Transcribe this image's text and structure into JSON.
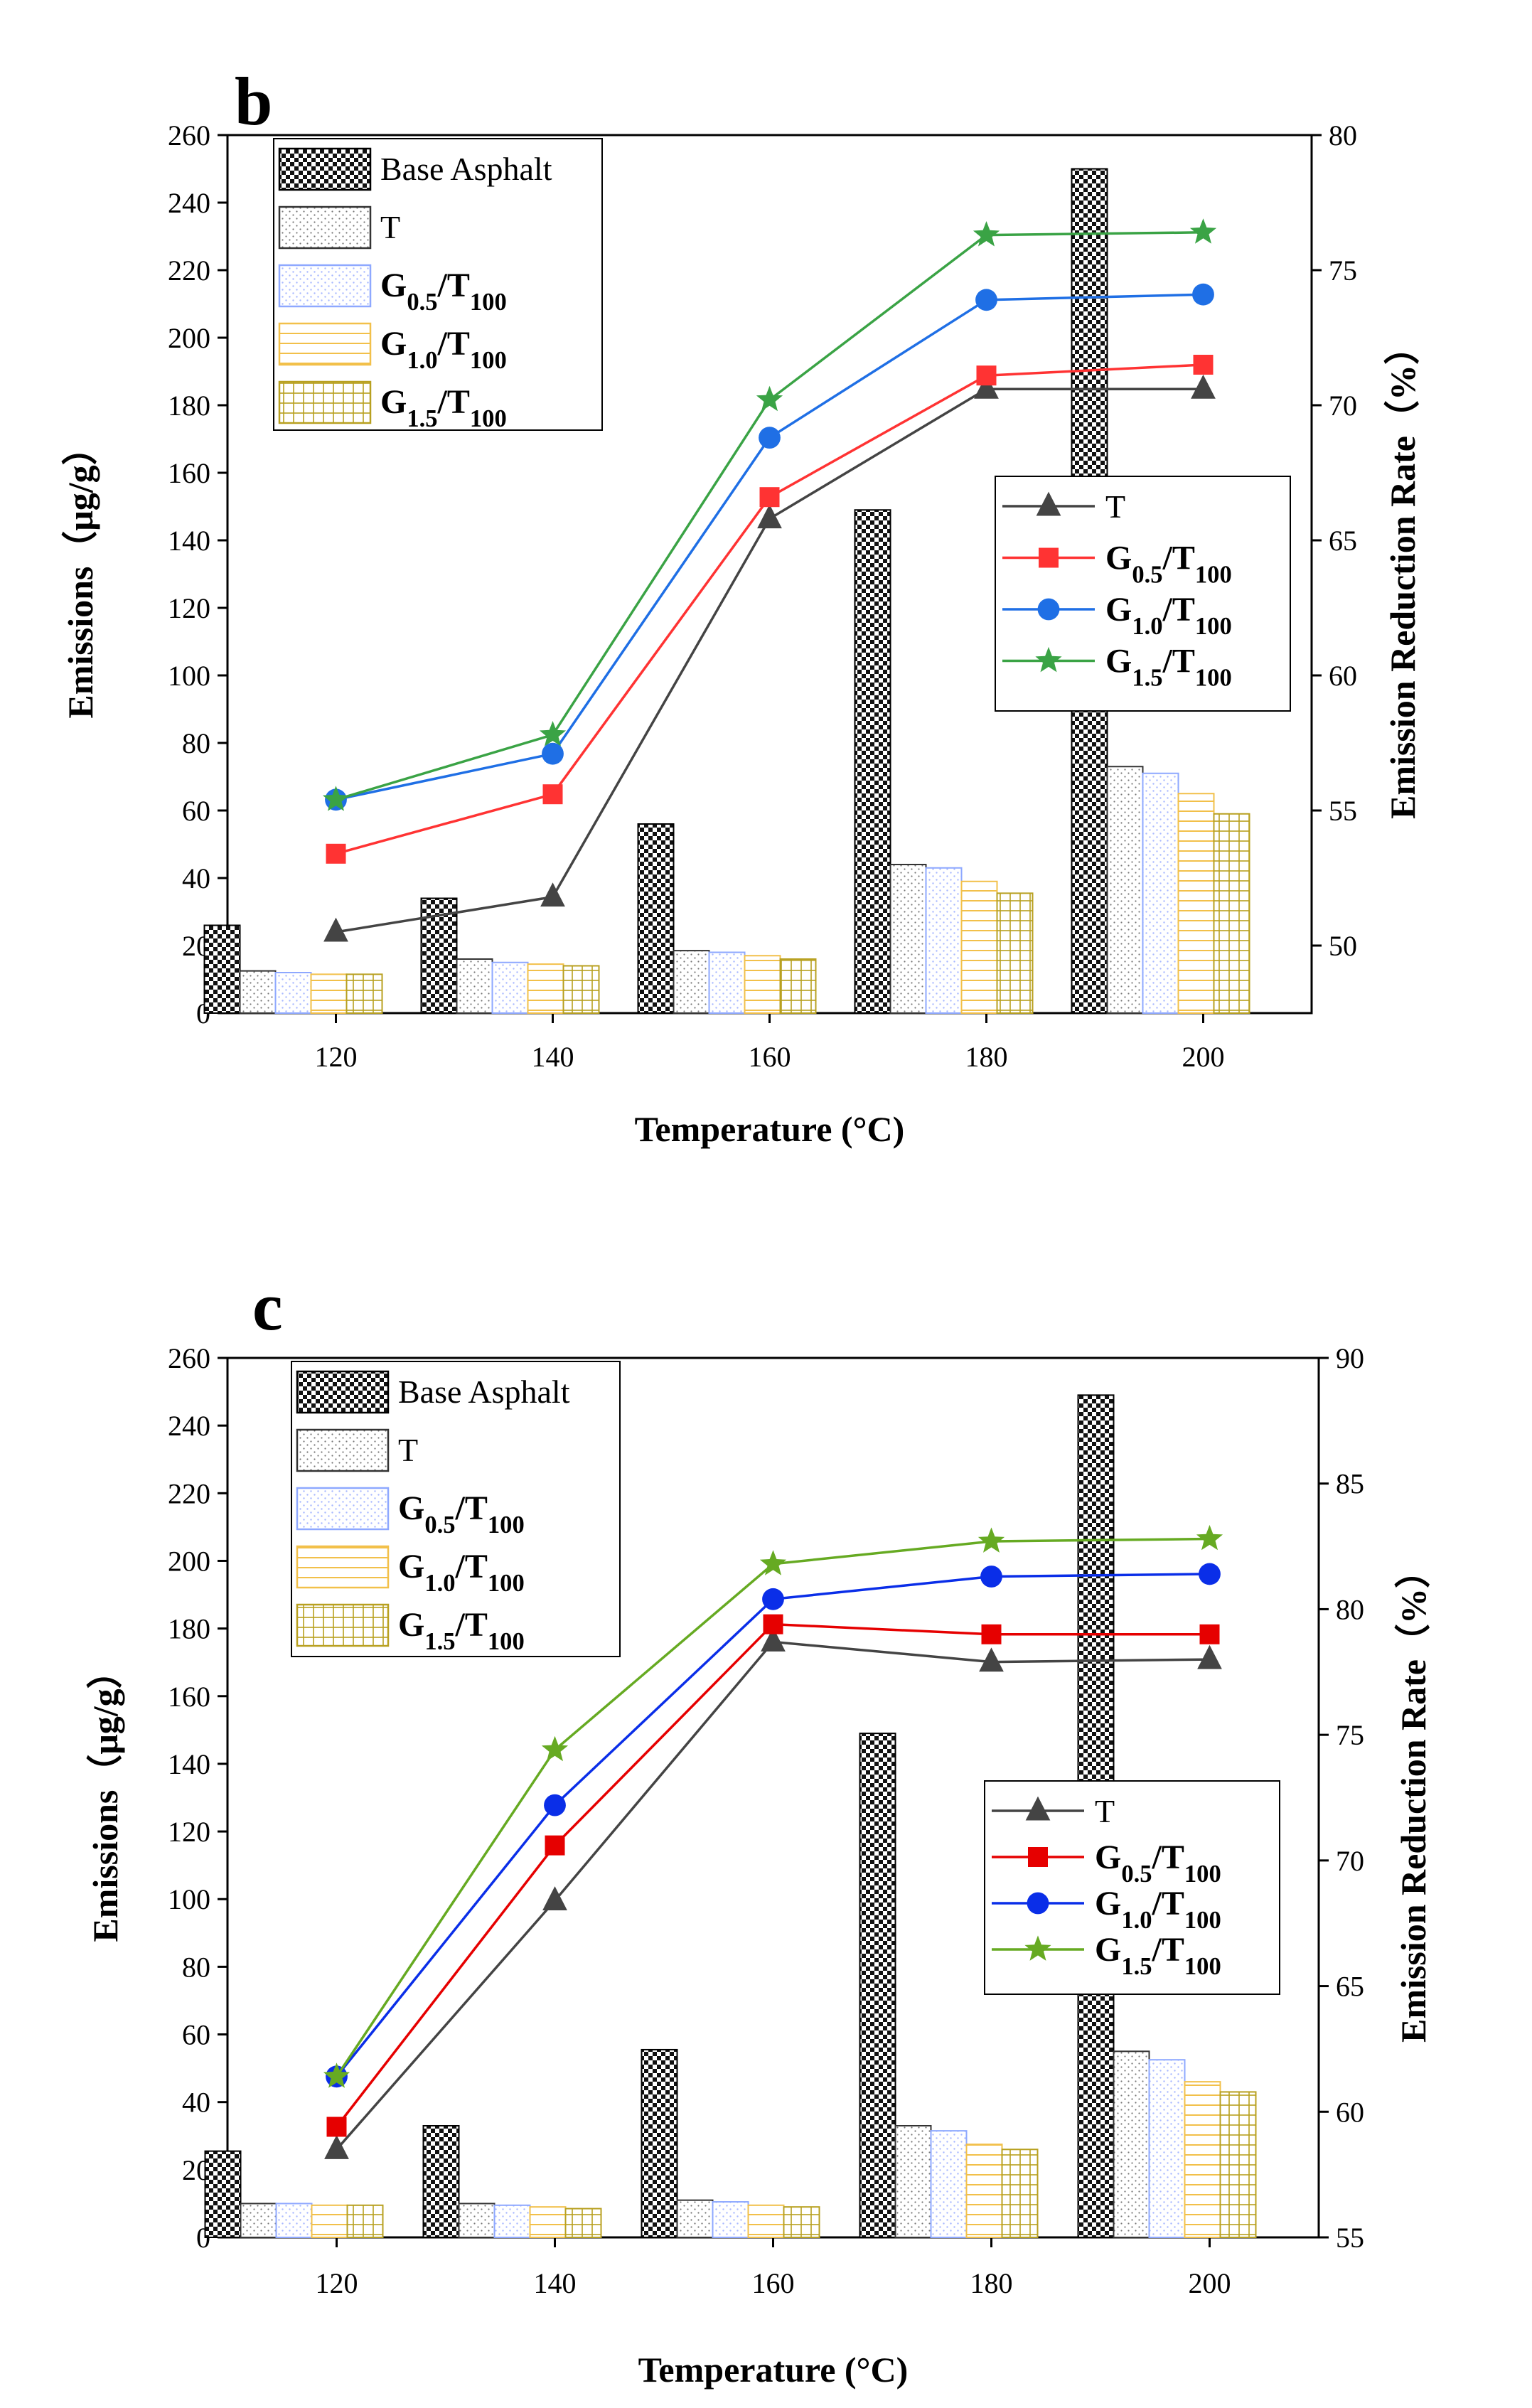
{
  "chart_data": [
    {
      "panel": "b",
      "type": "bar+line",
      "x": [
        120,
        140,
        160,
        180,
        200
      ],
      "xlabel": "Temperature (°C)",
      "ylabel": "Emissions（μg/g）",
      "ylabel2": "Emission Reduction Rate（%）",
      "ylim": [
        0,
        260
      ],
      "y2lim": [
        47.5,
        80
      ],
      "yticks": [
        0,
        20,
        40,
        60,
        80,
        100,
        120,
        140,
        160,
        180,
        200,
        220,
        240,
        260
      ],
      "y2ticks": [
        50,
        55,
        60,
        65,
        70,
        75,
        80
      ],
      "bar_series": [
        {
          "name": "Base Asphalt",
          "values": [
            26,
            34,
            56,
            149,
            250
          ]
        },
        {
          "name": "T",
          "values": [
            12.5,
            16,
            18.5,
            44,
            73
          ]
        },
        {
          "name": "G0.5/T100",
          "values": [
            12,
            15,
            18,
            43,
            71
          ]
        },
        {
          "name": "G1.0/T100",
          "values": [
            11.5,
            14.5,
            17,
            39,
            65
          ]
        },
        {
          "name": "G1.5/T100",
          "values": [
            11.5,
            14,
            16,
            35.5,
            59
          ]
        }
      ],
      "line_series": [
        {
          "name": "T",
          "values": [
            50.5,
            51.8,
            65.8,
            70.6,
            70.6
          ]
        },
        {
          "name": "G0.5/T100",
          "values": [
            53.4,
            55.6,
            66.6,
            71.1,
            71.5
          ]
        },
        {
          "name": "G1.0/T100",
          "values": [
            55.4,
            57.1,
            68.8,
            73.9,
            74.1
          ]
        },
        {
          "name": "G1.5/T100",
          "values": [
            55.4,
            57.8,
            70.2,
            76.3,
            76.4
          ]
        }
      ],
      "legend_bars_position": "top-left",
      "legend_lines_position": "center-right"
    },
    {
      "panel": "c",
      "type": "bar+line",
      "x": [
        120,
        140,
        160,
        180,
        200
      ],
      "xlabel": "Temperature (°C)",
      "ylabel": "Emissions（μg/g）",
      "ylabel2": "Emission Reduction Rate（%）",
      "ylim": [
        0,
        260
      ],
      "y2lim": [
        55,
        90
      ],
      "yticks": [
        0,
        20,
        40,
        60,
        80,
        100,
        120,
        140,
        160,
        180,
        200,
        220,
        240,
        260
      ],
      "y2ticks": [
        55,
        60,
        65,
        70,
        75,
        80,
        85,
        90
      ],
      "bar_series": [
        {
          "name": "Base Asphalt",
          "values": [
            25.5,
            33,
            55.5,
            149,
            249
          ]
        },
        {
          "name": "T",
          "values": [
            10,
            10,
            11,
            33,
            55
          ]
        },
        {
          "name": "G0.5/T100",
          "values": [
            10,
            9.5,
            10.5,
            31.5,
            52.5
          ]
        },
        {
          "name": "G1.0/T100",
          "values": [
            9.5,
            9,
            9.5,
            27.5,
            46
          ]
        },
        {
          "name": "G1.5/T100",
          "values": [
            9.5,
            8.5,
            9,
            26,
            43
          ]
        }
      ],
      "line_series": [
        {
          "name": "T",
          "values": [
            58.5,
            68.4,
            78.7,
            77.9,
            78.0
          ]
        },
        {
          "name": "G0.5/T100",
          "values": [
            59.4,
            70.6,
            79.4,
            79.0,
            79.0
          ]
        },
        {
          "name": "G1.0/T100",
          "values": [
            61.4,
            72.2,
            80.4,
            81.3,
            81.4
          ]
        },
        {
          "name": "G1.5/T100",
          "values": [
            61.4,
            74.4,
            81.8,
            82.7,
            82.8
          ]
        }
      ],
      "legend_bars_position": "top-left",
      "legend_lines_position": "center-right"
    }
  ],
  "series_colors": {
    "Base Asphalt": "#1a1a1a",
    "T": "#444444",
    "G0.5/T100": "#ff3333",
    "G1.0/T100": "#1f6fe5",
    "G1.5/T100": "#3aa345"
  },
  "bar_outline_colors": {
    "Base Asphalt": "#000000",
    "T": "#333333",
    "G0.5/T100": "#8ea8ff",
    "G1.0/T100": "#f2c04a",
    "G1.5/T100": "#b8a020"
  },
  "line_colors_panel_c": {
    "T": "#444444",
    "G0.5/T100": "#e60000",
    "G1.0/T100": "#0a2ee8",
    "G1.5/T100": "#66aa22"
  },
  "markers": {
    "T": "triangle",
    "G0.5/T100": "square",
    "G1.0/T100": "circle",
    "G1.5/T100": "star"
  },
  "legend_labels": [
    {
      "base": "G",
      "sub1": "0.5",
      "mid": "/T",
      "sub2": "100"
    },
    {
      "base": "G",
      "sub1": "1.0",
      "mid": "/T",
      "sub2": "100"
    },
    {
      "base": "G",
      "sub1": "1.5",
      "mid": "/T",
      "sub2": "100"
    }
  ]
}
